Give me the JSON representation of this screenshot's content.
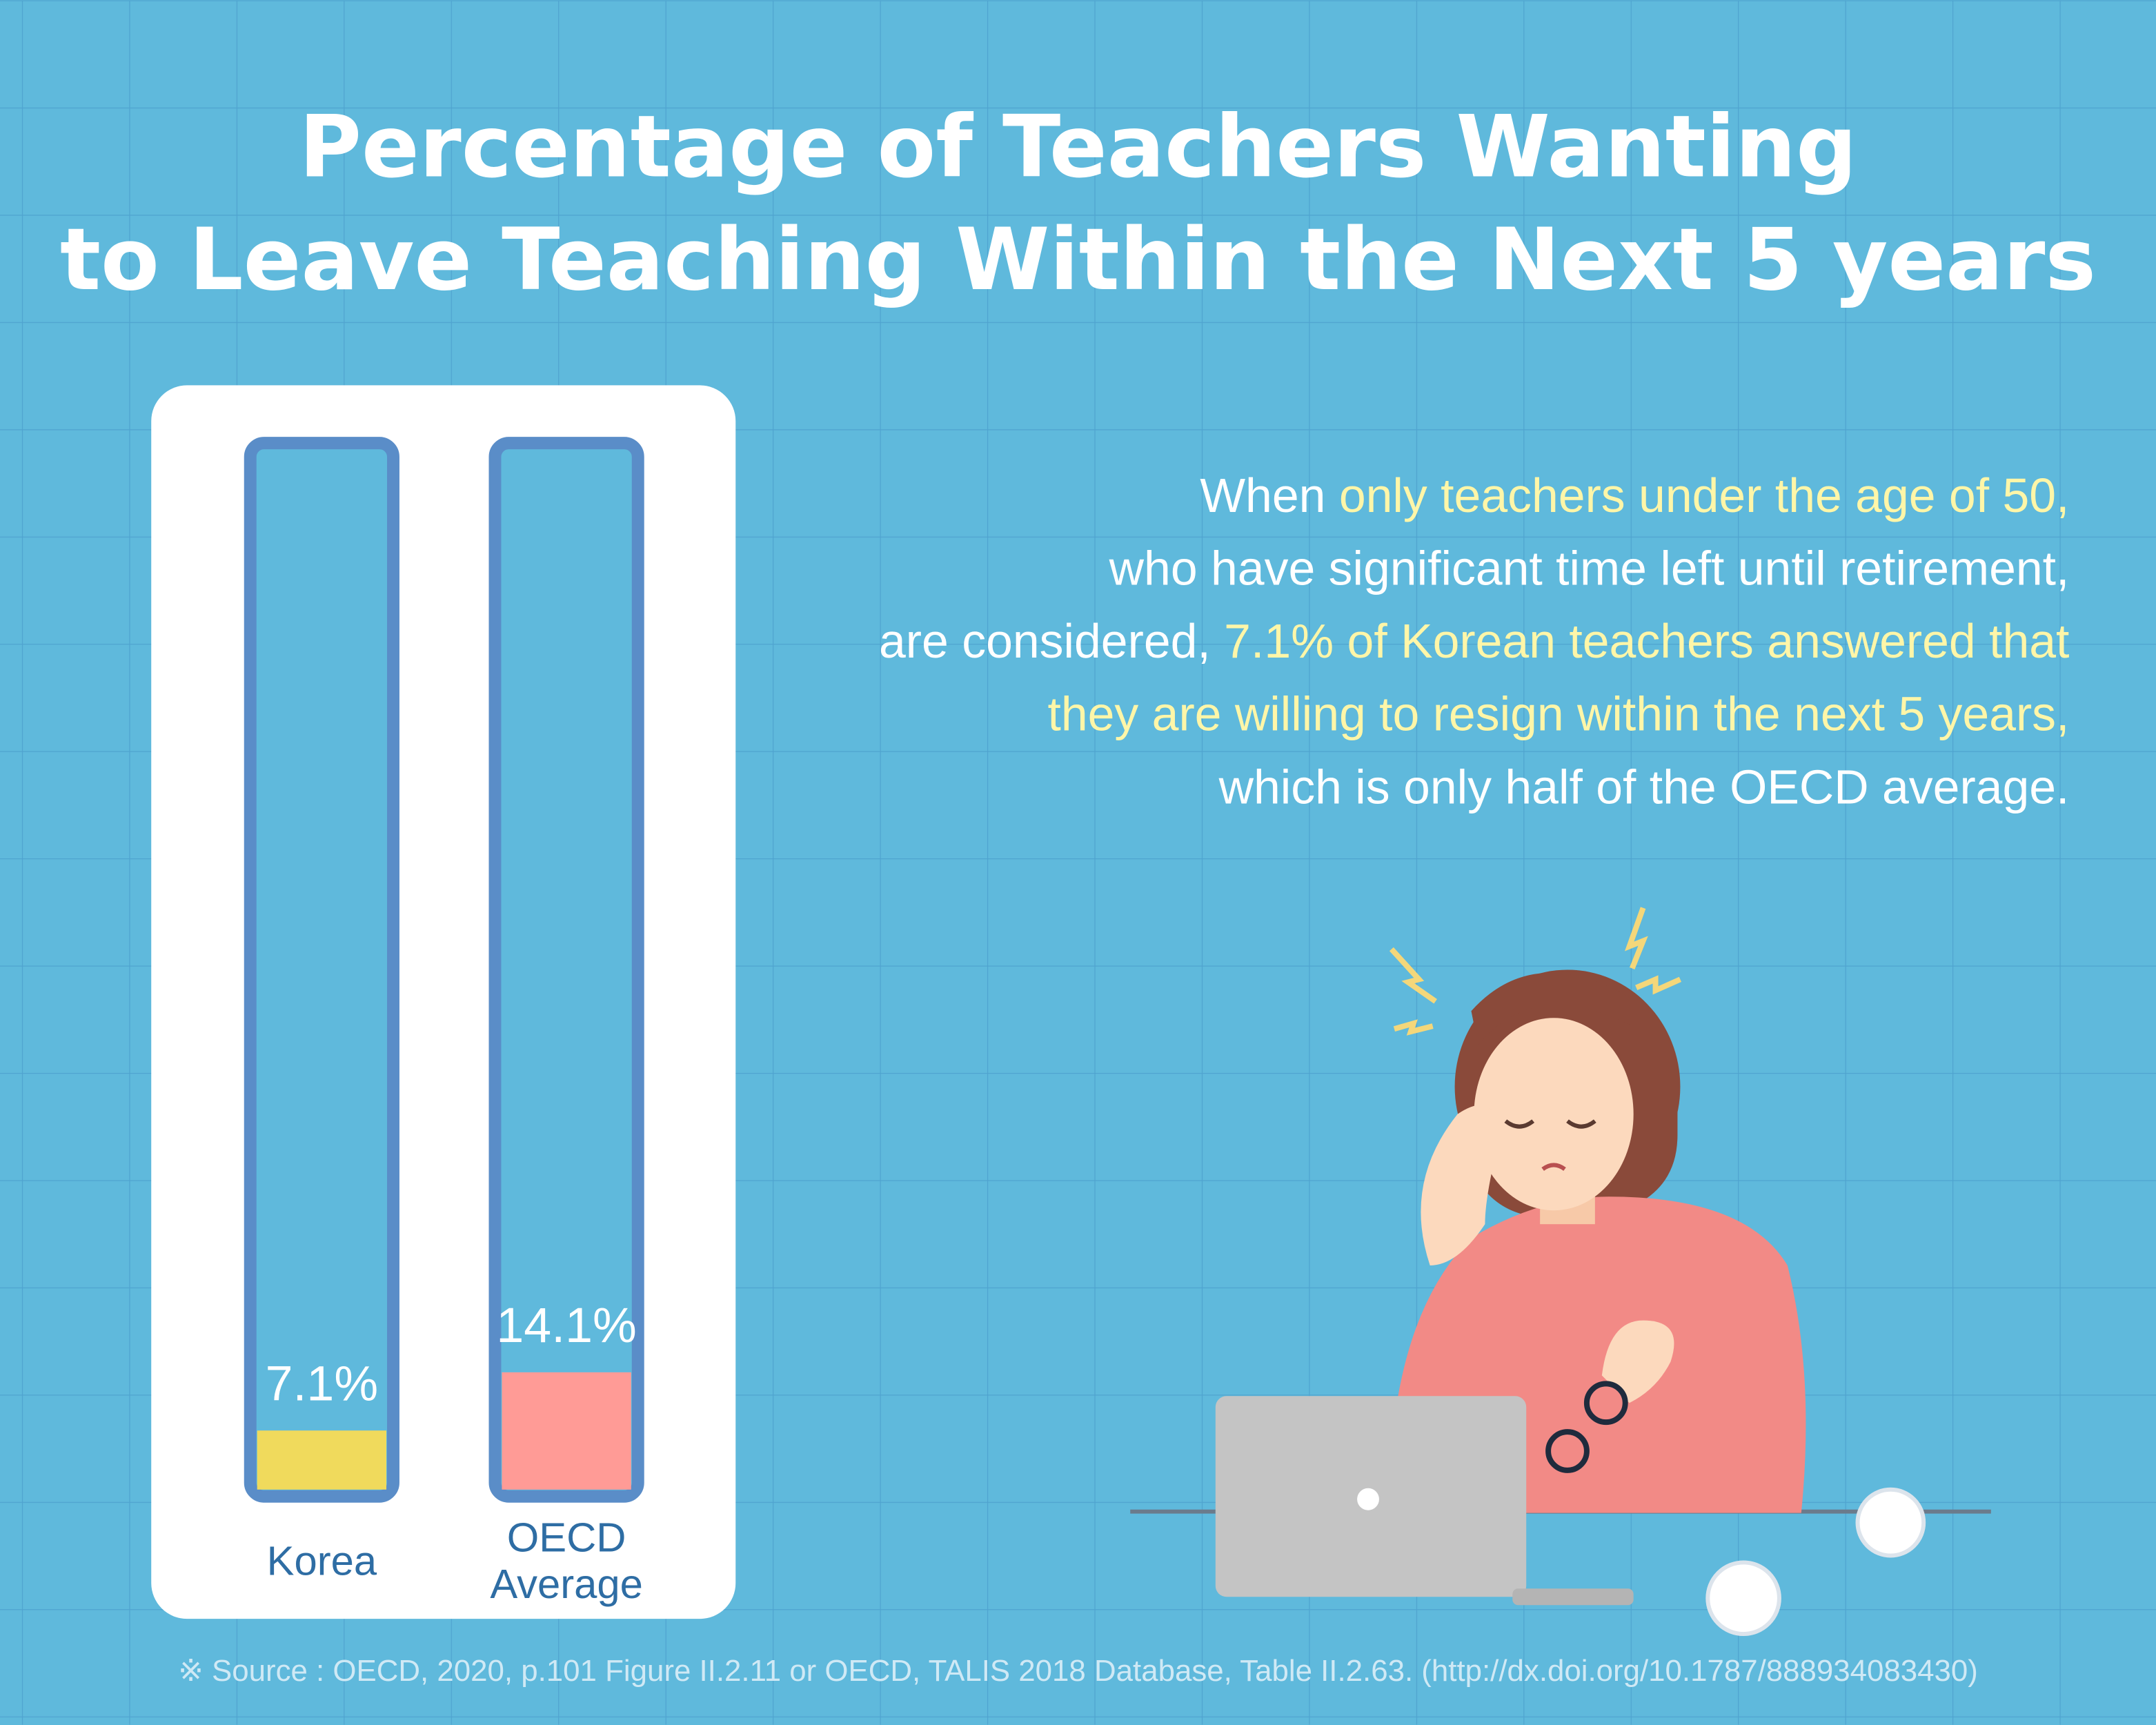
{
  "chart_data": {
    "type": "bar",
    "title": [
      "Percentage of Teachers Wanting",
      "to Leave Teaching Within the Next 5 years"
    ],
    "categories": [
      "Korea",
      "OECD Average"
    ],
    "values": [
      7.1,
      14.1
    ],
    "value_labels": [
      "7.1%",
      "14.1%"
    ],
    "colors": [
      "#f0da5c",
      "#ff9b96"
    ],
    "ylim": [
      0,
      125
    ],
    "description": [
      [
        {
          "text": "When ",
          "color": "#ffffff"
        },
        {
          "text": "only teachers under the age of 50,",
          "color": "#fff6a8"
        }
      ],
      [
        {
          "text": "who have significant time left until retirement,",
          "color": "#ffffff"
        }
      ],
      [
        {
          "text": "are considered, ",
          "color": "#ffffff"
        },
        {
          "text": "7.1% of Korean teachers answered that",
          "color": "#fff6a8"
        }
      ],
      [
        {
          "text": "they are willing to resign within the next 5 years,",
          "color": "#fff6a8"
        }
      ],
      [
        {
          "text": "which is only half of the OECD average.",
          "color": "#ffffff"
        }
      ]
    ],
    "source": "※ Source : OECD, 2020, p.101 Figure II.2.11 or OECD, TALIS 2018 Database, Table II.2.63. (http://dx.doi.org/10.1787/888934083430)"
  }
}
